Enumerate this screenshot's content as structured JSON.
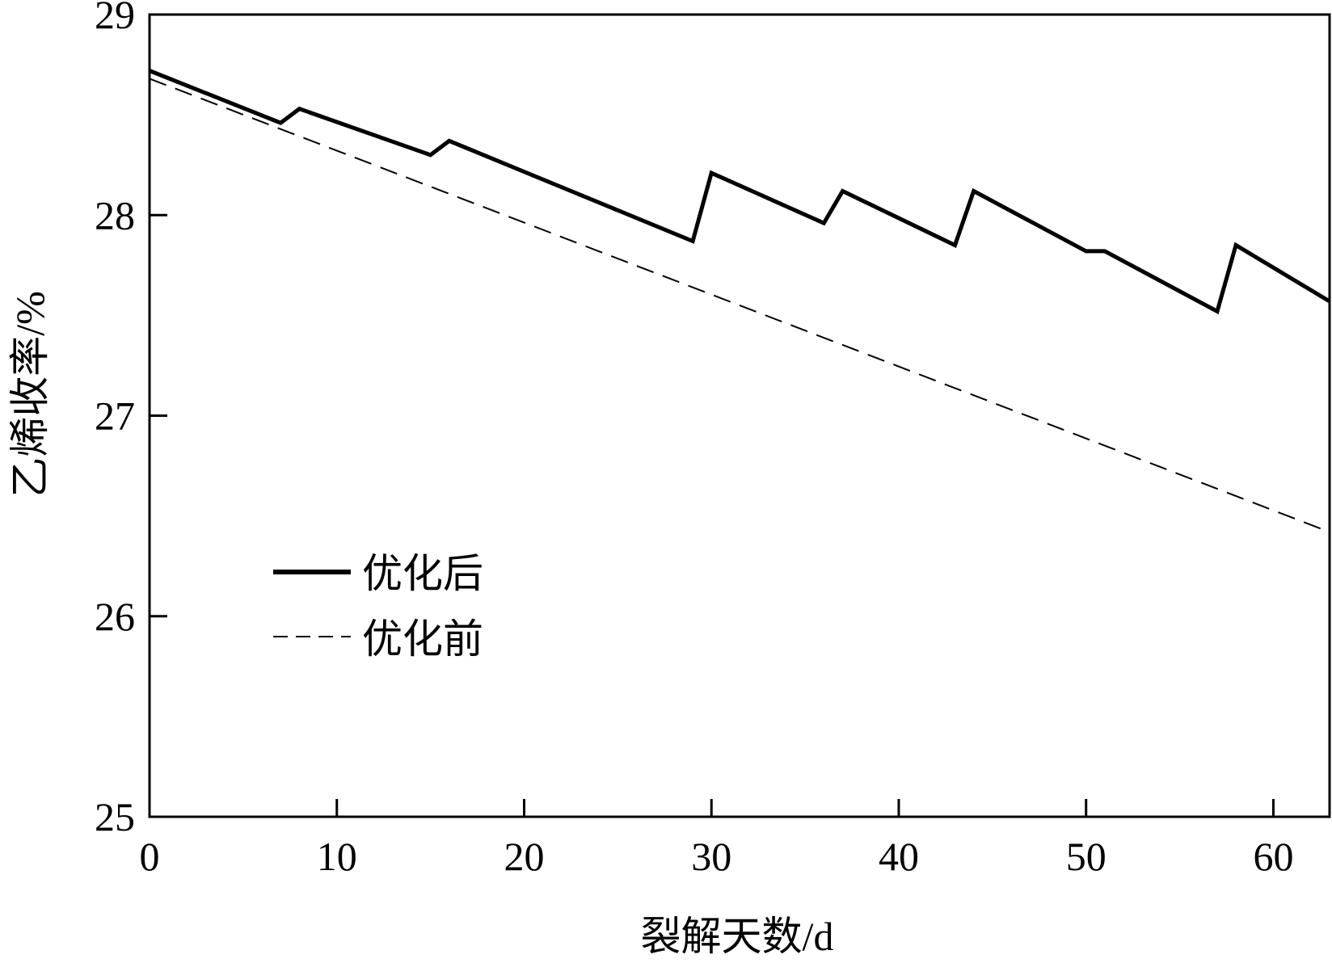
{
  "chart_data": {
    "type": "line",
    "xlabel": "裂解天数/d",
    "ylabel": "乙烯收率/%",
    "xlim": [
      0,
      63
    ],
    "ylim": [
      25,
      29
    ],
    "x_ticks": [
      0,
      10,
      20,
      30,
      40,
      50,
      60
    ],
    "y_ticks": [
      25,
      26,
      27,
      28,
      29
    ],
    "grid": false,
    "legend_position": "center-left",
    "series": [
      {
        "name": "优化后",
        "style": "solid",
        "color": "#000000",
        "x": [
          0,
          7,
          8,
          15,
          16,
          29,
          30,
          36,
          37,
          43,
          44,
          50,
          51,
          57,
          58,
          63
        ],
        "y": [
          28.72,
          28.46,
          28.53,
          28.3,
          28.37,
          27.87,
          28.21,
          27.96,
          28.12,
          27.85,
          28.12,
          27.82,
          27.82,
          27.52,
          27.85,
          27.57
        ]
      },
      {
        "name": "优化前",
        "style": "dashed",
        "color": "#000000",
        "x": [
          0,
          63
        ],
        "y": [
          28.68,
          26.42
        ]
      }
    ]
  }
}
